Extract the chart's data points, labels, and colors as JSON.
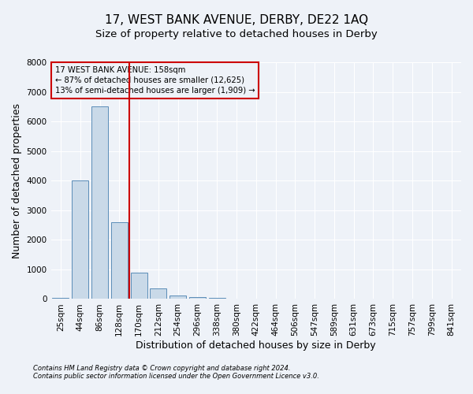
{
  "title": "17, WEST BANK AVENUE, DERBY, DE22 1AQ",
  "subtitle": "Size of property relative to detached houses in Derby",
  "xlabel": "Distribution of detached houses by size in Derby",
  "ylabel": "Number of detached properties",
  "footnote1": "Contains HM Land Registry data © Crown copyright and database right 2024.",
  "footnote2": "Contains public sector information licensed under the Open Government Licence v3.0.",
  "annotation_title": "17 WEST BANK AVENUE: 158sqm",
  "annotation_line1": "← 87% of detached houses are smaller (12,625)",
  "annotation_line2": "13% of semi-detached houses are larger (1,909) →",
  "bar_color": "#c9d9e8",
  "bar_edge_color": "#5b8db8",
  "vline_color": "#cc0000",
  "background_color": "#eef2f8",
  "grid_color": "#ffffff",
  "categories": [
    "25sqm",
    "44sqm",
    "86sqm",
    "128sqm",
    "170sqm",
    "212sqm",
    "254sqm",
    "296sqm",
    "338sqm",
    "380sqm",
    "422sqm",
    "464sqm",
    "506sqm",
    "547sqm",
    "589sqm",
    "631sqm",
    "673sqm",
    "715sqm",
    "757sqm",
    "799sqm",
    "841sqm"
  ],
  "values": [
    30,
    4000,
    6500,
    2600,
    900,
    350,
    125,
    75,
    40,
    10,
    5,
    3,
    2,
    1,
    0,
    0,
    0,
    0,
    0,
    0,
    0
  ],
  "ylim": [
    0,
    8000
  ],
  "yticks": [
    0,
    1000,
    2000,
    3000,
    4000,
    5000,
    6000,
    7000,
    8000
  ],
  "vline_x": 3.5,
  "title_fontsize": 11,
  "subtitle_fontsize": 9.5,
  "tick_fontsize": 7.5,
  "label_fontsize": 9,
  "footnote_fontsize": 6
}
